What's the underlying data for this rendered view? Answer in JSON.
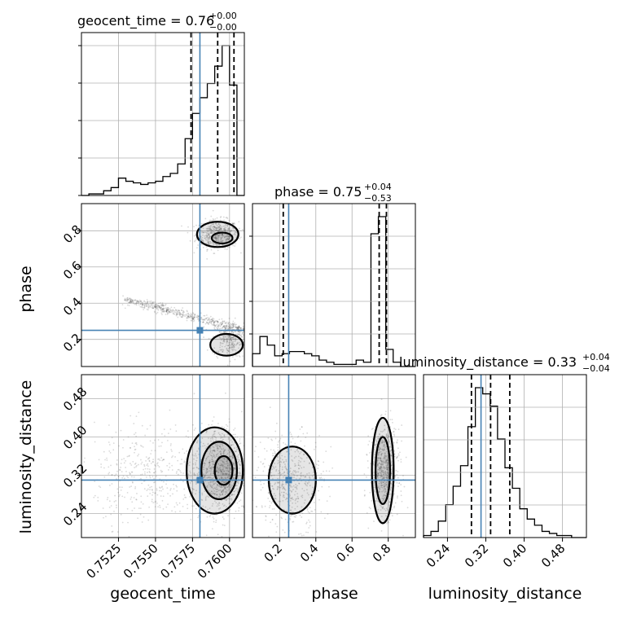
{
  "chart_data": {
    "type": "corner",
    "parameters": [
      "geocent_time",
      "phase",
      "luminosity_distance"
    ],
    "axis_labels": {
      "geocent_time": "geocent_time",
      "phase": "phase",
      "luminosity_distance": "luminosity_distance"
    },
    "ranges": {
      "geocent_time": [
        0.75,
        0.761
      ],
      "phase": [
        0.05,
        0.95
      ],
      "luminosity_distance": [
        0.19,
        0.53
      ]
    },
    "ticks": {
      "geocent_time": [
        "0.7525",
        "0.7550",
        "0.7575",
        "0.7600"
      ],
      "phase": [
        "0.2",
        "0.4",
        "0.6",
        "0.8"
      ],
      "luminosity_distance": [
        "0.24",
        "0.32",
        "0.40",
        "0.48"
      ]
    },
    "truths": {
      "geocent_time": 0.758,
      "phase": 0.25,
      "luminosity_distance": 0.31
    },
    "titles": {
      "geocent_time": {
        "name": "geocent_time",
        "median": "0.76",
        "plus": "+0.00",
        "minus": "−0.00"
      },
      "phase": {
        "name": "phase",
        "median": "0.75",
        "plus": "+0.04",
        "minus": "−0.53"
      },
      "luminosity_distance": {
        "name": "luminosity_distance",
        "median": "0.33",
        "plus": "+0.04",
        "minus": "−0.04"
      }
    },
    "quantiles": {
      "geocent_time": [
        0.7574,
        0.7592,
        0.7603
      ],
      "phase": [
        0.22,
        0.75,
        0.79
      ],
      "luminosity_distance": [
        0.29,
        0.33,
        0.37
      ]
    },
    "histograms": {
      "geocent_time": {
        "edges": [
          0.75,
          0.7505,
          0.751,
          0.7515,
          0.752,
          0.7525,
          0.753,
          0.7535,
          0.754,
          0.7545,
          0.755,
          0.7555,
          0.756,
          0.7565,
          0.757,
          0.7575,
          0.758,
          0.7585,
          0.759,
          0.7595,
          0.76,
          0.7605,
          0.761
        ],
        "counts": [
          0,
          1,
          1,
          3,
          5,
          11,
          9,
          8,
          7,
          8,
          9,
          12,
          14,
          20,
          36,
          52,
          62,
          71,
          82,
          95,
          70,
          0
        ]
      },
      "phase": {
        "edges": [
          0.05,
          0.0909,
          0.1318,
          0.1727,
          0.2136,
          0.2545,
          0.2955,
          0.3364,
          0.3773,
          0.4182,
          0.4591,
          0.5,
          0.5409,
          0.5818,
          0.6227,
          0.6636,
          0.7045,
          0.7455,
          0.7864,
          0.8273,
          0.8682,
          0.95
        ],
        "counts": [
          6,
          14,
          10,
          5,
          6,
          7,
          7,
          6,
          5,
          3,
          2,
          1,
          1,
          1,
          3,
          2,
          62,
          70,
          8,
          2,
          0
        ]
      },
      "luminosity_distance": {
        "edges": [
          0.19,
          0.2055,
          0.2209,
          0.2364,
          0.2518,
          0.2673,
          0.2827,
          0.2982,
          0.3136,
          0.3291,
          0.3445,
          0.36,
          0.3755,
          0.3909,
          0.4064,
          0.4218,
          0.4373,
          0.4527,
          0.4682,
          0.4836,
          0.4991,
          0.53
        ],
        "counts": [
          1,
          3,
          8,
          16,
          25,
          35,
          54,
          73,
          70,
          64,
          48,
          34,
          24,
          14,
          9,
          6,
          3,
          2,
          1,
          1,
          0
        ]
      }
    },
    "colors": {
      "truth": "#4682b4",
      "hist": "#000000",
      "grid": "#b0b0b0"
    }
  }
}
